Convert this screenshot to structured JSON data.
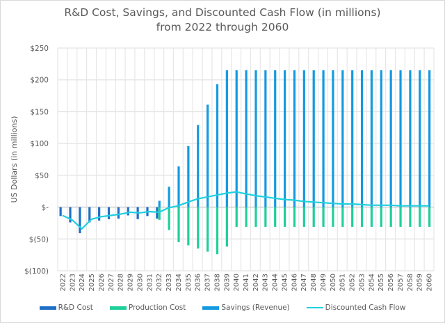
{
  "chart_data": {
    "type": "bar",
    "title_line1": "R&D Cost, Savings, and Discounted Cash Flow (in millions)",
    "title_line2": "from 2022 through 2060",
    "xlabel": "",
    "ylabel": "US Dollars (in millions)",
    "ylim": [
      -100,
      250
    ],
    "yticks": [
      250,
      200,
      150,
      100,
      50,
      0,
      -50,
      -100
    ],
    "ytick_labels": [
      "$250",
      "$200",
      "$150",
      "$100",
      "$50",
      "$-",
      "$(50)",
      "$(100)"
    ],
    "grid": true,
    "legend_position": "bottom",
    "categories": [
      "2022",
      "2023",
      "2024",
      "2025",
      "2026",
      "2027",
      "2028",
      "2029",
      "2030",
      "2031",
      "2032",
      "2033",
      "2034",
      "2035",
      "2036",
      "2037",
      "2038",
      "2039",
      "2040",
      "2041",
      "2042",
      "2043",
      "2044",
      "2045",
      "2046",
      "2047",
      "2048",
      "2049",
      "2050",
      "2051",
      "2052",
      "2053",
      "2054",
      "2055",
      "2056",
      "2057",
      "2058",
      "2059",
      "2060"
    ],
    "series": [
      {
        "name": "R&D Cost",
        "type": "bar",
        "color": "#1f6fc6",
        "values": [
          -14,
          -24,
          -41,
          -24,
          -21,
          -19,
          -18,
          -13,
          -19,
          -14,
          -18,
          0,
          0,
          0,
          0,
          0,
          0,
          0,
          0,
          0,
          0,
          0,
          0,
          0,
          0,
          0,
          0,
          0,
          0,
          0,
          0,
          0,
          0,
          0,
          0,
          0,
          0,
          0,
          0
        ]
      },
      {
        "name": "Production Cost",
        "type": "bar",
        "color": "#1fcf9a",
        "values": [
          0,
          0,
          0,
          0,
          0,
          0,
          0,
          0,
          0,
          0,
          -20,
          -36,
          -55,
          -60,
          -65,
          -70,
          -74,
          -62,
          -31,
          -31,
          -31,
          -31,
          -31,
          -31,
          -31,
          -31,
          -31,
          -31,
          -31,
          -31,
          -31,
          -31,
          -31,
          -31,
          -31,
          -31,
          -31,
          -31,
          -31
        ]
      },
      {
        "name": "Savings (Revenue)",
        "type": "bar",
        "color": "#139ae0",
        "values": [
          0,
          0,
          0,
          0,
          0,
          0,
          0,
          0,
          0,
          0,
          10,
          32,
          64,
          96,
          129,
          161,
          193,
          215,
          215,
          215,
          215,
          215,
          215,
          215,
          215,
          215,
          215,
          215,
          215,
          215,
          215,
          215,
          215,
          215,
          215,
          215,
          215,
          215,
          215
        ]
      },
      {
        "name": "Discounted Cash Flow",
        "type": "line",
        "color": "#1fcfe0",
        "values": [
          -13,
          -20,
          -34,
          -19,
          -15,
          -13,
          -11,
          -8,
          -9,
          -7,
          -8,
          -1,
          2,
          8,
          13,
          16,
          19,
          22,
          24,
          21,
          18,
          16,
          14,
          12,
          11,
          9,
          8,
          7,
          6,
          5,
          5,
          4,
          3,
          3,
          3,
          2,
          2,
          2,
          2
        ]
      }
    ]
  }
}
